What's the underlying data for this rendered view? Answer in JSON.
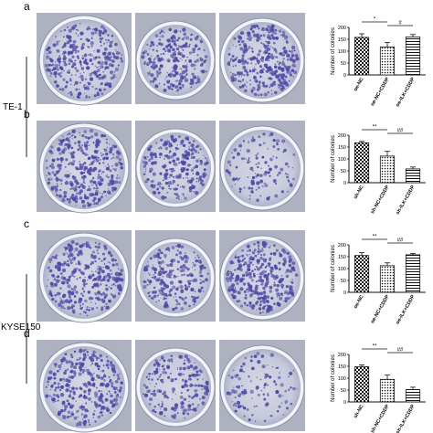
{
  "cell_lines": [
    "TE-1",
    "KYSE150"
  ],
  "panels": [
    {
      "letter": "a",
      "photo_labels": [
        "oe-NC",
        "oe-NC+CDDP",
        "oe-ILK+CDDP"
      ],
      "chart_data": {
        "type": "bar",
        "categories": [
          "oe-NC",
          "oe-NC+CDDP",
          "oe-ILK+CDDP"
        ],
        "values": [
          158,
          118,
          160
        ],
        "errors": [
          15,
          18,
          10
        ],
        "ylim": [
          0,
          200
        ],
        "yticks": [
          0,
          50,
          100,
          150,
          200
        ],
        "ylabel": "Number of colonies",
        "patterns": [
          "checker",
          "dots",
          "hstripes"
        ],
        "significance": [
          {
            "from": 0,
            "to": 1,
            "label": "*"
          },
          {
            "from": 1,
            "to": 2,
            "label": "#"
          }
        ]
      }
    },
    {
      "letter": "b",
      "photo_labels": [
        "sh-NC",
        "sh-NC+CDDP",
        "sh-ILK+CDDP"
      ],
      "chart_data": {
        "type": "bar",
        "categories": [
          "sh-NC",
          "sh-NC+CDDP",
          "sh-ILK+CDDP"
        ],
        "values": [
          168,
          112,
          58
        ],
        "errors": [
          6,
          20,
          8
        ],
        "ylim": [
          0,
          200
        ],
        "yticks": [
          0,
          50,
          100,
          150,
          200
        ],
        "ylabel": "Number of colonies",
        "patterns": [
          "checker",
          "dots",
          "hstripes"
        ],
        "significance": [
          {
            "from": 0,
            "to": 1,
            "label": "**"
          },
          {
            "from": 1,
            "to": 2,
            "label": "##"
          }
        ]
      }
    },
    {
      "letter": "c",
      "photo_labels": [
        "oe-NC",
        "oe-NC+CDDP",
        "oe-ILK+CDDP"
      ],
      "chart_data": {
        "type": "bar",
        "categories": [
          "oe-NC",
          "oe-NC+CDDP",
          "oe-ILK+CDDP"
        ],
        "values": [
          155,
          112,
          158
        ],
        "errors": [
          12,
          12,
          6
        ],
        "ylim": [
          0,
          200
        ],
        "yticks": [
          0,
          50,
          100,
          150,
          200
        ],
        "ylabel": "Number of colonies",
        "patterns": [
          "checker",
          "dots",
          "hstripes"
        ],
        "significance": [
          {
            "from": 0,
            "to": 1,
            "label": "**"
          },
          {
            "from": 1,
            "to": 2,
            "label": "##"
          }
        ]
      }
    },
    {
      "letter": "d",
      "photo_labels": [
        "sh-NC",
        "sh-NC+CDDP",
        "sh-ILK+CDDP"
      ],
      "chart_data": {
        "type": "bar",
        "categories": [
          "sh-NC",
          "sh-NC+CDDP",
          "sh-ILK+CDDP"
        ],
        "values": [
          148,
          95,
          52
        ],
        "errors": [
          8,
          18,
          10
        ],
        "ylim": [
          0,
          200
        ],
        "yticks": [
          0,
          50,
          100,
          150,
          200
        ],
        "ylabel": "Number of colonies",
        "patterns": [
          "checker",
          "dots",
          "hstripes"
        ],
        "significance": [
          {
            "from": 0,
            "to": 1,
            "label": "**"
          },
          {
            "from": 1,
            "to": 2,
            "label": "##"
          }
        ]
      }
    }
  ],
  "colors": {
    "plate_background": "#ced2df",
    "colony": "#5149a6",
    "rim": "#f2f3f8",
    "axis": "#111111"
  }
}
